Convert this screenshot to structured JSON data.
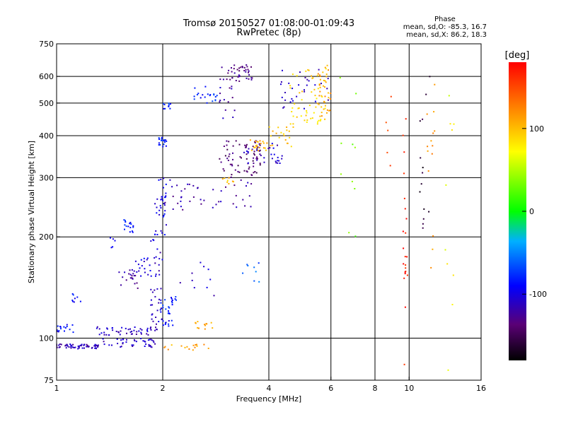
{
  "chart_data": {
    "type": "scatter",
    "title": "Tromsø 20150527 01:08:00-01:09:43",
    "subtitle": "RwPretec (8p)",
    "xlabel": "Frequency [MHz]",
    "ylabel": "Stationary phase Virtual Height [km]",
    "x_scale": "log",
    "y_scale": "log",
    "xlim": [
      1,
      16
    ],
    "ylim": [
      75,
      750
    ],
    "x_ticks": [
      "1",
      "2",
      "4",
      "6",
      "8",
      "10",
      "16"
    ],
    "y_ticks": [
      "75",
      "100",
      "200",
      "300",
      "400",
      "500",
      "600",
      "750"
    ],
    "x_tick_values": [
      1,
      2,
      4,
      6,
      8,
      10,
      16
    ],
    "y_tick_values": [
      75,
      100,
      200,
      300,
      400,
      500,
      600,
      750
    ],
    "x_grid": [
      2,
      4,
      6,
      8,
      10
    ],
    "y_grid": [
      100,
      200,
      300,
      400,
      500,
      600
    ],
    "colorbar": {
      "label": "[deg]",
      "range": [
        -180,
        180
      ],
      "ticks": [
        "100",
        "0",
        "-100"
      ],
      "tick_values": [
        100,
        0,
        -100
      ]
    },
    "stats": {
      "header": "Phase",
      "line_o": "mean, sd,O: -85.3, 16.7",
      "line_x": "mean, sd,X:  86.2, 18.3"
    },
    "clusters": [
      {
        "f": [
          1.0,
          1.33
        ],
        "h": [
          93,
          96
        ],
        "phase": -115,
        "n": 60
      },
      {
        "f": [
          1.0,
          1.12
        ],
        "h": [
          104,
          110
        ],
        "phase": -90,
        "n": 16
      },
      {
        "f": [
          1.1,
          1.17
        ],
        "h": [
          128,
          136
        ],
        "phase": -85,
        "n": 8
      },
      {
        "f": [
          1.3,
          1.92
        ],
        "h": [
          94,
          100
        ],
        "phase": -110,
        "n": 40
      },
      {
        "f": [
          1.3,
          1.95
        ],
        "h": [
          102,
          108
        ],
        "phase": -110,
        "n": 50
      },
      {
        "f": [
          1.5,
          1.7
        ],
        "h": [
          140,
          160
        ],
        "phase": -120,
        "n": 20
      },
      {
        "f": [
          1.65,
          1.85
        ],
        "h": [
          152,
          175
        ],
        "phase": -100,
        "n": 18
      },
      {
        "f": [
          1.55,
          1.65
        ],
        "h": [
          205,
          225
        ],
        "phase": -80,
        "n": 16
      },
      {
        "f": [
          1.42,
          1.47
        ],
        "h": [
          185,
          200
        ],
        "phase": -100,
        "n": 5
      },
      {
        "f": [
          1.85,
          2.0
        ],
        "h": [
          110,
          200
        ],
        "phase": -110,
        "n": 40
      },
      {
        "f": [
          1.9,
          2.05
        ],
        "h": [
          200,
          300
        ],
        "phase": -95,
        "n": 35
      },
      {
        "f": [
          2.0,
          2.15
        ],
        "h": [
          108,
          113
        ],
        "phase": -90,
        "n": 10
      },
      {
        "f": [
          1.95,
          2.1
        ],
        "h": [
          118,
          125
        ],
        "phase": -80,
        "n": 8
      },
      {
        "f": [
          1.95,
          2.2
        ],
        "h": [
          120,
          135
        ],
        "phase": -80,
        "n": 14
      },
      {
        "f": [
          1.95,
          2.05
        ],
        "h": [
          370,
          395
        ],
        "phase": -85,
        "n": 18
      },
      {
        "f": [
          2.0,
          2.15
        ],
        "h": [
          480,
          500
        ],
        "phase": -80,
        "n": 10
      },
      {
        "f": [
          2.4,
          2.9
        ],
        "h": [
          500,
          560
        ],
        "phase": -80,
        "n": 20
      },
      {
        "f": [
          2.9,
          3.6
        ],
        "h": [
          580,
          650
        ],
        "phase": -130,
        "n": 40
      },
      {
        "f": [
          2.9,
          3.2
        ],
        "h": [
          450,
          600
        ],
        "phase": -120,
        "n": 16
      },
      {
        "f": [
          2.0,
          3.6
        ],
        "h": [
          240,
          300
        ],
        "phase": -120,
        "n": 45
      },
      {
        "f": [
          2.9,
          3.8
        ],
        "h": [
          300,
          390
        ],
        "phase": -140,
        "n": 70
      },
      {
        "f": [
          3.4,
          4.4
        ],
        "h": [
          330,
          380
        ],
        "phase": -110,
        "n": 30
      },
      {
        "f": [
          3.5,
          4.0
        ],
        "h": [
          360,
          390
        ],
        "phase": 105,
        "n": 20
      },
      {
        "f": [
          2.95,
          3.2
        ],
        "h": [
          285,
          300
        ],
        "phase": 100,
        "n": 8
      },
      {
        "f": [
          4.0,
          4.7
        ],
        "h": [
          360,
          430
        ],
        "phase": 100,
        "n": 20
      },
      {
        "f": [
          4.5,
          5.9
        ],
        "h": [
          430,
          640
        ],
        "phase": 90,
        "n": 55
      },
      {
        "f": [
          5.5,
          6.0
        ],
        "h": [
          450,
          650
        ],
        "phase": 110,
        "n": 35
      },
      {
        "f": [
          4.3,
          5.9
        ],
        "h": [
          480,
          650
        ],
        "phase": -110,
        "n": 30
      },
      {
        "f": [
          2.4,
          2.8
        ],
        "h": [
          106,
          112
        ],
        "phase": 110,
        "n": 12
      },
      {
        "f": [
          2.0,
          2.75
        ],
        "h": [
          92,
          96
        ],
        "phase": 110,
        "n": 16
      },
      {
        "f": [
          2.2,
          2.8
        ],
        "h": [
          130,
          170
        ],
        "phase": -110,
        "n": 10
      },
      {
        "f": [
          3.3,
          3.8
        ],
        "h": [
          140,
          170
        ],
        "phase": -60,
        "n": 8
      },
      {
        "f": [
          6.3,
          7.1
        ],
        "h": [
          200,
          600
        ],
        "phase": 30,
        "n": 10
      },
      {
        "f": [
          8.5,
          9.1
        ],
        "h": [
          230,
          620
        ],
        "phase": 160,
        "n": 5
      },
      {
        "f": [
          9.6,
          9.9
        ],
        "h": [
          78,
          480
        ],
        "phase": 170,
        "n": 22
      },
      {
        "f": [
          10.7,
          11.5
        ],
        "h": [
          200,
          600
        ],
        "phase": -160,
        "n": 14
      },
      {
        "f": [
          11.2,
          12.0
        ],
        "h": [
          150,
          620
        ],
        "phase": 120,
        "n": 14
      },
      {
        "f": [
          12.5,
          13.5
        ],
        "h": [
          78,
          620
        ],
        "phase": 70,
        "n": 10
      }
    ]
  }
}
